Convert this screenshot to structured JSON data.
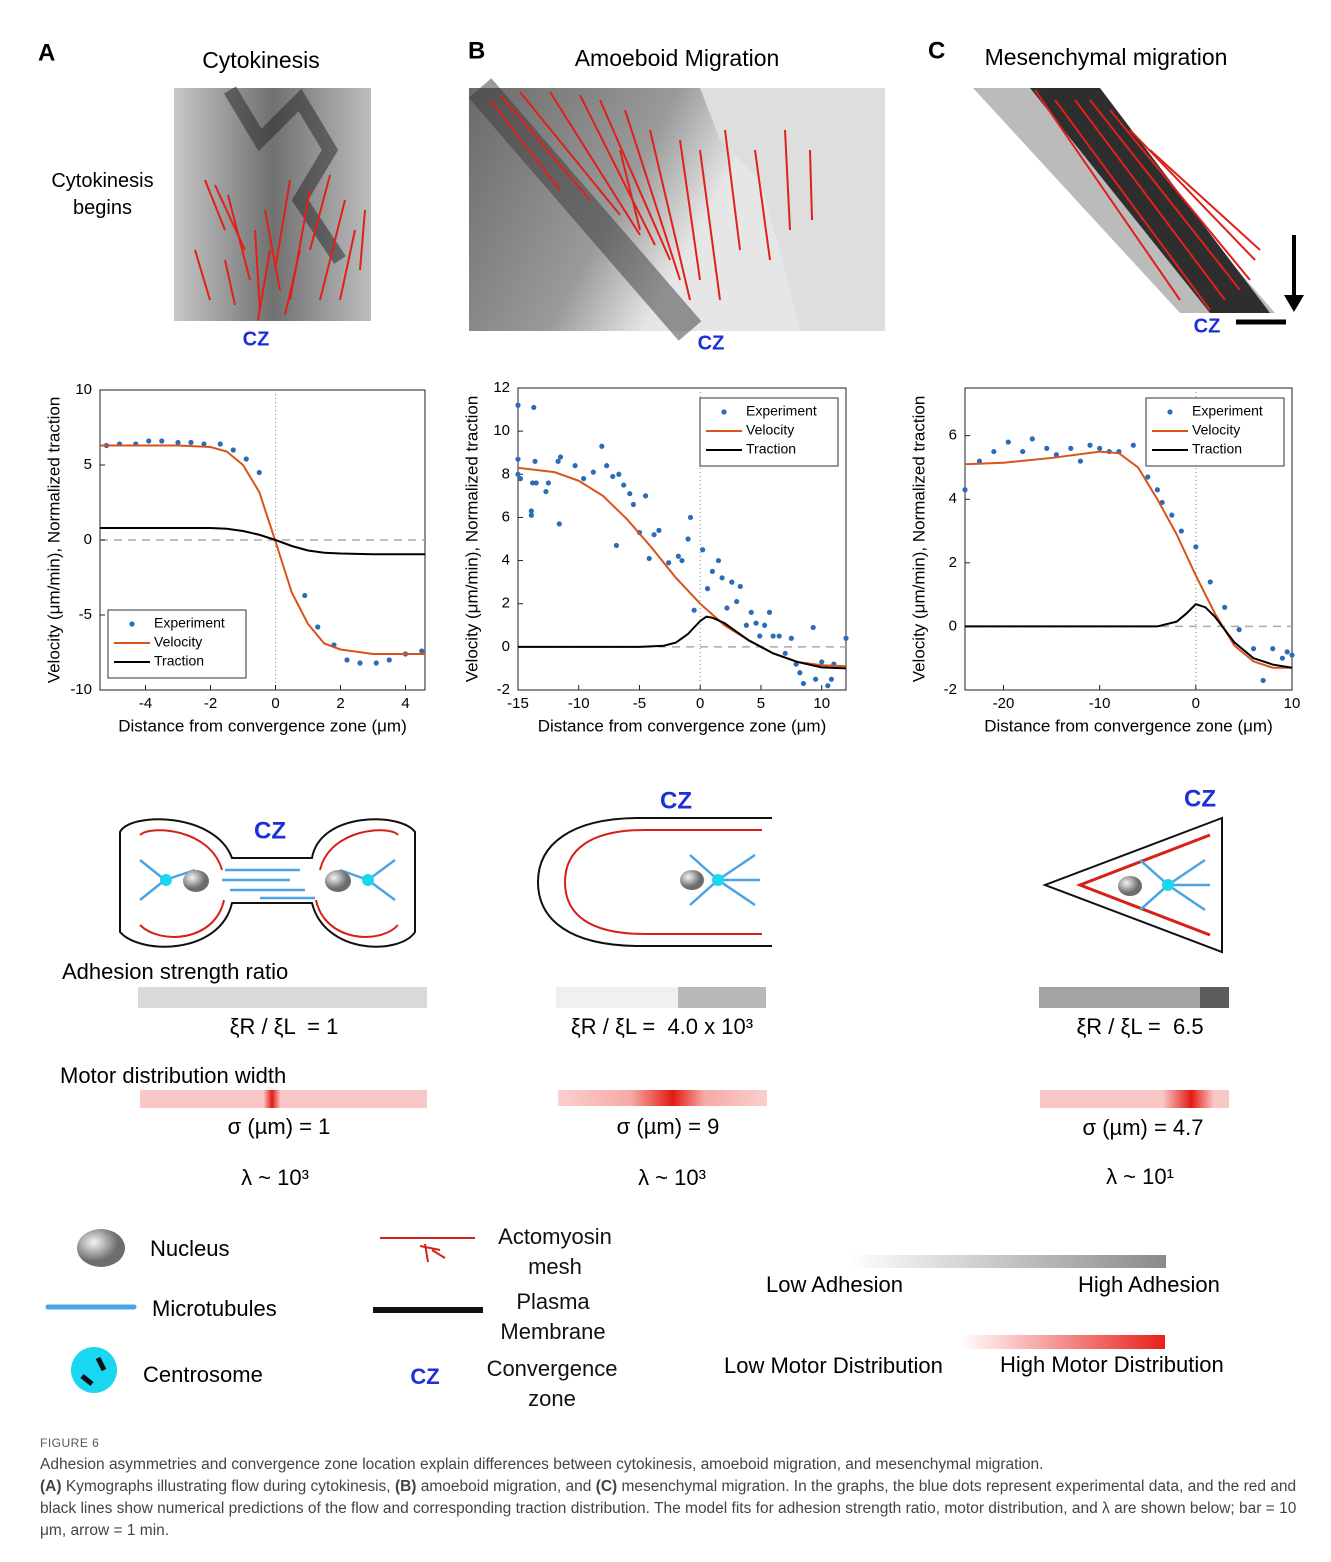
{
  "panels": [
    {
      "letter": "A",
      "title": "Cytokinesis",
      "annotation": "Cytokinesis begins",
      "cz": "CZ"
    },
    {
      "letter": "B",
      "title": "Amoeboid Migration",
      "cz": "CZ"
    },
    {
      "letter": "C",
      "title": "Mesenchymal migration",
      "cz": "CZ"
    }
  ],
  "chart_data": [
    {
      "type": "line",
      "xlabel": "Distance from convergence zone (μm)",
      "ylabel": "Velocity (μm/min), Normalized traction",
      "xlim": [
        -5.4,
        4.6
      ],
      "xticks": [
        -4,
        -2,
        0,
        2,
        4
      ],
      "ylim": [
        -10,
        10
      ],
      "yticks": [
        -10,
        -5,
        0,
        5,
        10
      ],
      "legend": "lower left",
      "series": [
        {
          "name": "Experiment",
          "style": "markers",
          "color": "#2b6cb8",
          "x": [
            -5.2,
            -4.8,
            -4.3,
            -3.9,
            -3.5,
            -3.0,
            -2.6,
            -2.2,
            -1.7,
            -1.3,
            -0.9,
            -0.5,
            0.9,
            1.3,
            1.8,
            2.2,
            2.6,
            3.1,
            3.5,
            4.0,
            4.5
          ],
          "values": [
            6.3,
            6.4,
            6.4,
            6.6,
            6.6,
            6.5,
            6.5,
            6.4,
            6.4,
            6.0,
            5.4,
            4.5,
            -3.7,
            -5.8,
            -7.0,
            -8.0,
            -8.2,
            -8.2,
            -8.0,
            -7.6,
            -7.4
          ]
        },
        {
          "name": "Velocity",
          "style": "line",
          "color": "#d95319",
          "x": [
            -5.4,
            -4,
            -3,
            -2,
            -1.5,
            -1,
            -0.5,
            0,
            0.5,
            1,
            1.5,
            2,
            3,
            4,
            4.6
          ],
          "values": [
            6.3,
            6.3,
            6.3,
            6.2,
            5.9,
            5.0,
            3.2,
            -0.1,
            -3.5,
            -5.6,
            -6.9,
            -7.3,
            -7.6,
            -7.6,
            -7.6
          ]
        },
        {
          "name": "Traction",
          "style": "line",
          "color": "#000000",
          "x": [
            -5.4,
            -4,
            -3,
            -2,
            -1.5,
            -1,
            -0.5,
            0,
            0.5,
            1,
            1.5,
            2,
            3,
            4,
            4.6
          ],
          "values": [
            0.8,
            0.8,
            0.8,
            0.8,
            0.75,
            0.6,
            0.35,
            0,
            -0.4,
            -0.7,
            -0.85,
            -0.9,
            -0.95,
            -0.95,
            -0.95
          ]
        }
      ]
    },
    {
      "type": "line",
      "xlabel": "Distance from convergence zone (μm)",
      "ylabel": "Velocity (μm/min), Normalized traction",
      "xlim": [
        -15,
        12
      ],
      "xticks": [
        -15,
        -10,
        -5,
        0,
        5,
        10
      ],
      "ylim": [
        -2,
        12
      ],
      "yticks": [
        -2,
        0,
        2,
        4,
        6,
        8,
        10,
        12
      ],
      "legend": "upper right",
      "series": [
        {
          "name": "Experiment",
          "style": "markers",
          "color": "#2b6cb8",
          "x": [
            -15,
            -15,
            -15,
            -14.8,
            -13.7,
            -13.8,
            -13.6,
            -13.9,
            -13.9,
            -13.5,
            -12.7,
            -12.5,
            -11.7,
            -11.6,
            -11.5,
            -10.3,
            -9.6,
            -8.8,
            -8.1,
            -7.7,
            -7.2,
            -6.9,
            -6.7,
            -6.3,
            -5.8,
            -5.5,
            -5,
            -4.5,
            -4.2,
            -3.8,
            -3.4,
            -2.6,
            -1.8,
            -1.5,
            -1.0,
            -0.8,
            -0.5,
            0.2,
            0.6,
            1.0,
            1.5,
            1.8,
            2.2,
            2.6,
            3.0,
            3.3,
            3.8,
            4.2,
            4.6,
            4.9,
            5.3,
            5.7,
            6,
            6.5,
            7,
            7.5,
            7.9,
            8.2,
            8.5,
            9.3,
            9.5,
            10,
            10.5,
            10.8,
            11,
            12
          ],
          "values": [
            11.2,
            8.7,
            8.0,
            7.8,
            11.1,
            7.6,
            8.6,
            6.3,
            6.1,
            7.6,
            7.2,
            7.6,
            8.6,
            5.7,
            8.8,
            8.4,
            7.8,
            8.1,
            9.3,
            8.4,
            7.9,
            4.7,
            8.0,
            7.5,
            7.1,
            6.6,
            5.3,
            7.0,
            4.1,
            5.2,
            5.4,
            3.9,
            4.2,
            4.0,
            5.0,
            6.0,
            1.7,
            4.5,
            2.7,
            3.5,
            4.0,
            3.2,
            1.8,
            3.0,
            2.1,
            2.8,
            1.0,
            1.6,
            1.1,
            0.5,
            1.0,
            1.6,
            0.5,
            0.5,
            -0.3,
            0.4,
            -0.8,
            -1.2,
            -1.7,
            0.9,
            -1.5,
            -0.7,
            -1.8,
            -1.5,
            -0.8,
            0.4
          ]
        },
        {
          "name": "Velocity",
          "style": "line",
          "color": "#d95319",
          "x": [
            -15,
            -12,
            -10,
            -8,
            -6,
            -4,
            -2,
            0,
            2,
            4,
            6,
            8,
            10,
            12
          ],
          "values": [
            8.3,
            8.1,
            7.7,
            7.0,
            5.9,
            4.6,
            3.2,
            2.0,
            1.0,
            0.3,
            -0.3,
            -0.7,
            -0.85,
            -0.9
          ]
        },
        {
          "name": "Traction",
          "style": "line",
          "color": "#000000",
          "x": [
            -15,
            -5,
            -3,
            -2,
            -1,
            0,
            0.5,
            1,
            2,
            3,
            4,
            6,
            8,
            10,
            12
          ],
          "values": [
            0,
            0,
            0.05,
            0.2,
            0.6,
            1.2,
            1.4,
            1.35,
            1.1,
            0.7,
            0.3,
            -0.3,
            -0.7,
            -0.95,
            -1.0
          ]
        }
      ]
    },
    {
      "type": "line",
      "xlabel": "Distance from convergence zone (μm)",
      "ylabel": "Velocity (μm/min), Normalized traction",
      "xlim": [
        -24,
        10
      ],
      "xticks": [
        -20,
        -10,
        0,
        10
      ],
      "ylim": [
        -2,
        7.5
      ],
      "yticks": [
        -2,
        0,
        2,
        4,
        6
      ],
      "legend": "upper right",
      "series": [
        {
          "name": "Experiment",
          "style": "markers",
          "color": "#2b6cb8",
          "x": [
            -24,
            -22.5,
            -21,
            -19.5,
            -18,
            -17,
            -15.5,
            -14.5,
            -13,
            -12,
            -11,
            -10,
            -9,
            -8,
            -6.5,
            -5,
            -4,
            -3.5,
            -2.5,
            -1.5,
            0,
            1.5,
            3,
            4.5,
            6,
            7,
            8,
            9,
            9.5,
            10
          ],
          "values": [
            4.3,
            5.2,
            5.5,
            5.8,
            5.5,
            5.9,
            5.6,
            5.4,
            5.6,
            5.2,
            5.7,
            5.6,
            5.5,
            5.5,
            5.7,
            4.7,
            4.3,
            3.9,
            3.5,
            3.0,
            2.5,
            1.4,
            0.6,
            -0.1,
            -0.7,
            -1.7,
            -0.7,
            -1.0,
            -0.8,
            -0.9
          ]
        },
        {
          "name": "Velocity",
          "style": "line",
          "color": "#d95319",
          "x": [
            -24,
            -20,
            -15,
            -10,
            -8,
            -6,
            -4,
            -2,
            0,
            2,
            4,
            6,
            8,
            10
          ],
          "values": [
            5.1,
            5.15,
            5.3,
            5.5,
            5.45,
            5.0,
            4.0,
            2.9,
            1.6,
            0.4,
            -0.6,
            -1.1,
            -1.3,
            -1.3
          ]
        },
        {
          "name": "Traction",
          "style": "line",
          "color": "#000000",
          "x": [
            -24,
            -4,
            -2,
            -1,
            0,
            1,
            2,
            3,
            4,
            6,
            8,
            10
          ],
          "values": [
            0,
            0,
            0.15,
            0.4,
            0.7,
            0.6,
            0.3,
            -0.1,
            -0.5,
            -1.0,
            -1.2,
            -1.3
          ]
        }
      ]
    }
  ],
  "schematics": [
    {
      "cz": "CZ",
      "adhesion_ratio": "ξR / ξL  = 1",
      "sigma": "σ (µm) = 1",
      "lambda": "λ ~ 10³"
    },
    {
      "cz": "CZ",
      "adhesion_ratio": "ξR / ξL =  4.0 x 10³",
      "sigma": "σ (µm) = 9",
      "lambda": "λ ~ 10³"
    },
    {
      "cz": "CZ",
      "adhesion_ratio": "ξR / ξL =  6.5",
      "sigma": "σ (µm) = 4.7",
      "lambda": "λ ~ 10¹"
    }
  ],
  "labels": {
    "adhesion_strength": "Adhesion strength ratio",
    "motor_width": "Motor distribution width"
  },
  "key": {
    "nucleus": "Nucleus",
    "microtubules": "Microtubules",
    "centrosome": "Centrosome",
    "actomyosin": "Actomyosin mesh",
    "membrane": "Plasma Membrane",
    "cz": "CZ",
    "cz_name": "Convergence zone",
    "low_adhesion": "Low Adhesion",
    "high_adhesion": "High Adhesion",
    "low_motor": "Low Motor Distribution",
    "high_motor": "High Motor Distribution"
  },
  "caption": {
    "label": "FIGURE 6",
    "title": "Adhesion asymmetries and convergence zone location explain differences between cytokinesis, amoeboid migration, and mesenchymal migration.",
    "parts": [
      "(A)",
      " Kymographs illustrating flow during cytokinesis, ",
      "(B)",
      " amoeboid migration, and ",
      "(C)",
      " mesenchymal migration. In the graphs, the blue dots represent experimental data, and the red and black lines show numerical predictions of the flow and corresponding traction distribution. The model fits for adhesion strength ratio, motor distribution, and λ are shown below; bar = 10 μm, arrow = 1 min."
    ]
  }
}
